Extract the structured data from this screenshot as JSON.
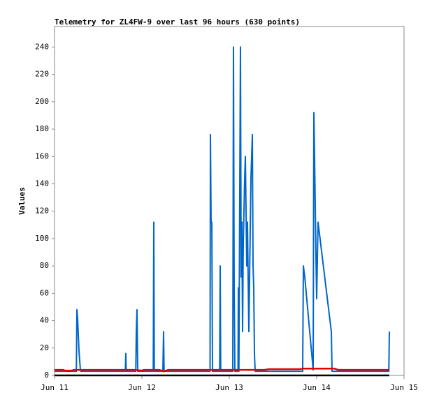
{
  "chart_data": {
    "type": "line",
    "title": "Telemetry for ZL4FW-9 over last 96 hours (630 points)",
    "y_label": "Values",
    "xlim": [
      0,
      4
    ],
    "xticks": [
      {
        "value": 0,
        "label": "Jun 11"
      },
      {
        "value": 1,
        "label": "Jun 12"
      },
      {
        "value": 2,
        "label": "Jun 13"
      },
      {
        "value": 3,
        "label": "Jun 14"
      },
      {
        "value": 4,
        "label": "Jun 15"
      }
    ],
    "ylim": [
      0,
      255
    ],
    "yticks": [
      0,
      20,
      40,
      60,
      80,
      100,
      120,
      140,
      160,
      180,
      200,
      220,
      240
    ],
    "grid": false,
    "series": [
      {
        "color": "#0066cc",
        "x": [
          0,
          0.25,
          0.256,
          0.264,
          0.272,
          0.28,
          0.296,
          0.3,
          0.81,
          0.816,
          0.82,
          0.93,
          0.936,
          0.944,
          0.952,
          1.13,
          1.136,
          1.142,
          1.24,
          1.248,
          1.254,
          1.78,
          1.784,
          1.792,
          1.8,
          1.808,
          1.89,
          1.896,
          1.902,
          2.04,
          2.048,
          2.056,
          2.064,
          2.1,
          2.104,
          2.11,
          2.128,
          2.136,
          2.144,
          2.152,
          2.16,
          2.176,
          2.184,
          2.2,
          2.208,
          2.224,
          2.248,
          2.264,
          2.272,
          2.28,
          2.288,
          2.296,
          2.84,
          2.848,
          2.864,
          2.96,
          2.968,
          2.976,
          2.984,
          2.992,
          3.0,
          3.016,
          3.168,
          3.176,
          3.826,
          3.832
        ],
        "values": [
          3,
          3,
          48,
          42,
          30,
          18,
          4,
          3,
          3,
          16,
          3,
          3,
          32,
          48,
          3,
          3,
          112,
          3,
          3,
          32,
          3,
          3,
          176,
          112,
          112,
          3,
          3,
          80,
          3,
          3,
          240,
          64,
          3,
          3,
          64,
          3,
          240,
          72,
          112,
          32,
          96,
          144,
          160,
          80,
          112,
          32,
          144,
          176,
          80,
          64,
          16,
          3,
          3,
          80,
          72,
          4,
          192,
          160,
          124,
          88,
          56,
          112,
          32,
          3,
          3,
          32
        ]
      },
      {
        "color": "#e00000",
        "x": [
          0,
          0.1,
          0.12,
          0.2,
          0.22,
          0.9,
          1.0,
          1.02,
          1.2,
          1.25,
          1.3,
          2.0,
          2.4,
          2.45,
          2.8,
          2.85,
          3.2,
          3.25,
          3.83
        ],
        "values": [
          4,
          4,
          3.5,
          3.5,
          4,
          4,
          3.5,
          4,
          4,
          3,
          4,
          4,
          4,
          4.5,
          4.5,
          5,
          5,
          4,
          4
        ]
      },
      {
        "color": "#000000",
        "x": [
          0,
          3.83
        ],
        "values": [
          0,
          0
        ]
      }
    ]
  }
}
